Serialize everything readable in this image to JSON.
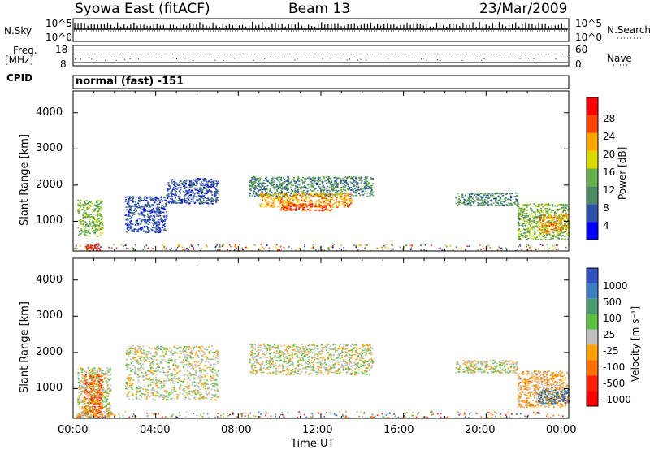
{
  "header": {
    "station": "Syowa East (fitACF)",
    "beam": "Beam 13",
    "date": "23/Mar/2009"
  },
  "strip_labels": {
    "nsky": "N.Sky",
    "nsky_top": "10^5",
    "nsky_bottom": "10^0",
    "nsearch": "N.Search",
    "nsearch_top": "10^5",
    "nsearch_bottom": "10^0",
    "freq_top": "Freq.",
    "freq_unit": "[MHz]",
    "freq_max": "18",
    "freq_min": "8",
    "nave": "Nave",
    "nave_max": "60",
    "nave_min": "0",
    "cpid": "CPID",
    "cpid_value": "normal (fast) -151"
  },
  "panels": {
    "power": {
      "ylabel": "Slant Range [km]",
      "yticks": [
        "1000",
        "2000",
        "3000",
        "4000"
      ],
      "colorbar_label": "Power [dB]",
      "colorbar_ticks": [
        "4",
        "8",
        "12",
        "16",
        "20",
        "24",
        "28"
      ]
    },
    "velocity": {
      "ylabel": "Slant Range [km]",
      "yticks": [
        "1000",
        "2000",
        "3000",
        "4000"
      ],
      "colorbar_label": "Velocity  [m s⁻¹]",
      "colorbar_ticks": [
        "1000",
        "500",
        "100",
        "25",
        "-25",
        "-100",
        "-500",
        "-1000"
      ]
    }
  },
  "xaxis": {
    "ticks": [
      "00:00",
      "04:00",
      "08:00",
      "12:00",
      "16:00",
      "20:00",
      "00:00"
    ],
    "label": "Time UT"
  },
  "colors": {
    "power_scale": [
      "#0000ff",
      "#2d4fa6",
      "#4b8a64",
      "#67b04b",
      "#dada00",
      "#ffa500",
      "#ff4500",
      "#ff0000"
    ],
    "velocity_scale": [
      "#3050c0",
      "#3c7ec4",
      "#4c9a70",
      "#5cc040",
      "#c0c0c0",
      "#ffa000",
      "#ff7000",
      "#ff2000",
      "#ff0000"
    ]
  },
  "chart_data": [
    {
      "type": "heatmap",
      "name": "power",
      "xlim_hours": [
        0,
        24
      ],
      "ylim_km": [
        180,
        4600
      ],
      "colorbar_range": [
        0,
        30
      ],
      "regions": [
        {
          "t0": 0.2,
          "t1": 1.4,
          "r0": 600,
          "r1": 1600,
          "level": 3
        },
        {
          "t0": 0.6,
          "t1": 1.3,
          "r0": 200,
          "r1": 400,
          "level": 7
        },
        {
          "t0": 2.5,
          "t1": 4.5,
          "r0": 700,
          "r1": 1700,
          "level": 1
        },
        {
          "t0": 4.5,
          "t1": 7.0,
          "r0": 1500,
          "r1": 2200,
          "level": 1
        },
        {
          "t0": 8.5,
          "t1": 14.5,
          "r0": 1700,
          "r1": 2250,
          "level": 2
        },
        {
          "t0": 9.0,
          "t1": 13.5,
          "r0": 1400,
          "r1": 1800,
          "level": 5
        },
        {
          "t0": 10.0,
          "t1": 12.5,
          "r0": 1300,
          "r1": 1500,
          "level": 6
        },
        {
          "t0": 18.5,
          "t1": 21.5,
          "r0": 1450,
          "r1": 1800,
          "level": 2
        },
        {
          "t0": 21.5,
          "t1": 24.0,
          "r0": 500,
          "r1": 1500,
          "level": 3
        },
        {
          "t0": 22.5,
          "t1": 24.0,
          "r0": 700,
          "r1": 1200,
          "level": 5
        }
      ]
    },
    {
      "type": "heatmap",
      "name": "velocity",
      "xlim_hours": [
        0,
        24
      ],
      "ylim_km": [
        180,
        4600
      ],
      "colorbar_range": [
        -1000,
        1000
      ],
      "regions": [
        {
          "t0": 0.2,
          "t1": 1.8,
          "r0": 200,
          "r1": 1600,
          "level": 4
        },
        {
          "t0": 0.5,
          "t1": 1.4,
          "r0": 300,
          "r1": 1400,
          "level": 6
        },
        {
          "t0": 0.1,
          "t1": 2.0,
          "r0": 220,
          "r1": 330,
          "level": 5
        },
        {
          "t0": 2.5,
          "t1": 7.0,
          "r0": 700,
          "r1": 2200,
          "level": 4
        },
        {
          "t0": 8.5,
          "t1": 14.5,
          "r0": 1400,
          "r1": 2250,
          "level": 4
        },
        {
          "t0": 18.5,
          "t1": 21.5,
          "r0": 1450,
          "r1": 1800,
          "level": 4
        },
        {
          "t0": 21.5,
          "t1": 24.0,
          "r0": 500,
          "r1": 1500,
          "level": 5
        },
        {
          "t0": 22.5,
          "t1": 24.0,
          "r0": 600,
          "r1": 1000,
          "level": 1
        }
      ]
    }
  ]
}
